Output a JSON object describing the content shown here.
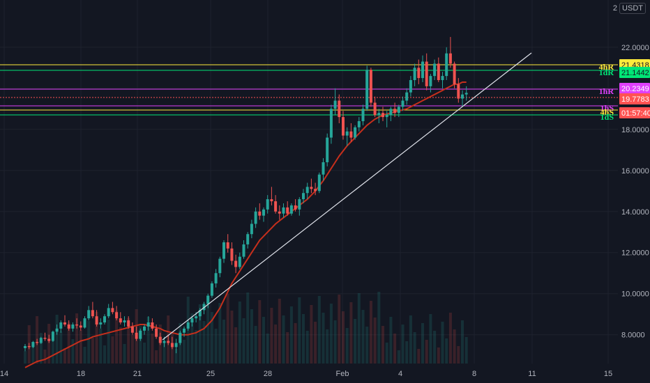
{
  "currency": {
    "prefix": "2",
    "unit": "USDT"
  },
  "colors": {
    "background": "#131722",
    "grid": "#1e222d",
    "up": "#26a69a",
    "down": "#ef5350",
    "ma": "#c62f1c",
    "trendline": "#e0e3eb",
    "yellow": "#ffeb3b",
    "green": "#00e676",
    "magenta": "#e040fb",
    "red_line": "#ff5252"
  },
  "chart_data": {
    "type": "candlestick",
    "x_ticks": [
      "14",
      "18",
      "21",
      "25",
      "28",
      "Feb",
      "4",
      "8",
      "11",
      "15"
    ],
    "y_ticks": [
      "22.0000",
      "20.0000",
      "18.0000",
      "16.0000",
      "14.0000",
      "12.0000",
      "10.0000",
      "8.0000"
    ],
    "ylim": [
      6.6,
      24.3
    ],
    "grid": true,
    "series": [
      {
        "series_type": "candles",
        "values": [
          [
            7.35,
            7.55,
            7.2,
            7.45
          ],
          [
            7.45,
            7.6,
            7.3,
            7.4
          ],
          [
            7.4,
            7.7,
            7.35,
            7.65
          ],
          [
            7.65,
            7.8,
            7.5,
            7.6
          ],
          [
            7.6,
            7.9,
            7.55,
            7.85
          ],
          [
            7.85,
            8.1,
            7.7,
            7.8
          ],
          [
            7.8,
            8.0,
            7.6,
            7.7
          ],
          [
            7.7,
            8.2,
            7.65,
            8.15
          ],
          [
            8.15,
            8.5,
            8.0,
            8.3
          ],
          [
            8.3,
            8.7,
            8.1,
            8.6
          ],
          [
            8.6,
            8.95,
            8.4,
            8.5
          ],
          [
            8.5,
            8.7,
            8.2,
            8.3
          ],
          [
            8.3,
            8.6,
            8.15,
            8.5
          ],
          [
            8.5,
            8.8,
            8.3,
            8.45
          ],
          [
            8.45,
            8.65,
            8.2,
            8.35
          ],
          [
            8.35,
            8.9,
            8.3,
            8.8
          ],
          [
            8.8,
            9.4,
            8.7,
            9.2
          ],
          [
            9.2,
            9.6,
            8.8,
            8.9
          ],
          [
            8.9,
            9.2,
            8.4,
            8.5
          ],
          [
            8.5,
            8.8,
            8.3,
            8.6
          ],
          [
            8.6,
            9.0,
            8.5,
            8.9
          ],
          [
            8.9,
            9.5,
            8.8,
            9.3
          ],
          [
            9.3,
            9.6,
            9.0,
            9.1
          ],
          [
            9.1,
            9.4,
            8.7,
            8.8
          ],
          [
            8.8,
            9.1,
            8.5,
            8.6
          ],
          [
            8.6,
            8.9,
            8.4,
            8.7
          ],
          [
            8.7,
            8.9,
            8.3,
            8.4
          ],
          [
            8.4,
            8.6,
            8.0,
            8.1
          ],
          [
            8.1,
            8.4,
            7.7,
            7.8
          ],
          [
            7.8,
            8.3,
            7.7,
            8.2
          ],
          [
            8.2,
            8.5,
            8.0,
            8.4
          ],
          [
            8.4,
            8.9,
            8.2,
            8.6
          ],
          [
            8.6,
            8.8,
            8.2,
            8.3
          ],
          [
            8.3,
            8.5,
            7.8,
            7.9
          ],
          [
            7.9,
            8.1,
            7.5,
            7.6
          ],
          [
            7.6,
            7.9,
            7.4,
            7.7
          ],
          [
            7.7,
            8.0,
            7.5,
            7.6
          ],
          [
            7.6,
            7.9,
            7.3,
            7.4
          ],
          [
            7.4,
            7.8,
            7.1,
            7.6
          ],
          [
            7.6,
            8.2,
            7.5,
            8.1
          ],
          [
            8.1,
            8.4,
            7.9,
            8.3
          ],
          [
            8.3,
            8.7,
            8.2,
            8.6
          ],
          [
            8.6,
            8.9,
            8.4,
            8.8
          ],
          [
            8.8,
            9.1,
            8.6,
            8.9
          ],
          [
            8.9,
            9.3,
            8.7,
            9.2
          ],
          [
            9.2,
            9.6,
            9.0,
            9.5
          ],
          [
            9.5,
            10.0,
            9.3,
            9.9
          ],
          [
            9.9,
            10.6,
            9.8,
            10.5
          ],
          [
            10.5,
            11.2,
            10.3,
            11.0
          ],
          [
            11.0,
            11.8,
            10.8,
            11.7
          ],
          [
            11.7,
            12.6,
            11.5,
            12.5
          ],
          [
            12.5,
            12.9,
            12.0,
            12.2
          ],
          [
            12.2,
            12.5,
            11.4,
            11.6
          ],
          [
            11.6,
            11.9,
            11.0,
            11.3
          ],
          [
            11.3,
            12.0,
            11.2,
            11.8
          ],
          [
            11.8,
            12.6,
            11.7,
            12.4
          ],
          [
            12.4,
            13.0,
            12.2,
            12.9
          ],
          [
            12.9,
            13.6,
            12.7,
            13.4
          ],
          [
            13.4,
            14.2,
            13.2,
            14.0
          ],
          [
            14.0,
            14.4,
            13.6,
            13.8
          ],
          [
            13.8,
            14.2,
            13.5,
            14.1
          ],
          [
            14.1,
            14.8,
            13.9,
            14.6
          ],
          [
            14.6,
            15.2,
            14.3,
            14.5
          ],
          [
            14.5,
            14.8,
            13.9,
            14.0
          ],
          [
            14.0,
            14.3,
            13.6,
            13.9
          ],
          [
            13.9,
            14.4,
            13.7,
            14.2
          ],
          [
            14.2,
            14.5,
            13.8,
            13.9
          ],
          [
            13.9,
            14.4,
            13.8,
            14.3
          ],
          [
            14.3,
            14.6,
            14.0,
            14.1
          ],
          [
            14.1,
            14.7,
            13.8,
            14.6
          ],
          [
            14.6,
            15.1,
            14.4,
            14.9
          ],
          [
            14.9,
            15.4,
            14.6,
            15.2
          ],
          [
            15.2,
            15.6,
            14.9,
            15.1
          ],
          [
            15.1,
            15.4,
            14.8,
            15.0
          ],
          [
            15.0,
            15.9,
            14.9,
            15.8
          ],
          [
            15.8,
            16.6,
            15.5,
            16.4
          ],
          [
            16.4,
            17.8,
            16.2,
            17.6
          ],
          [
            17.6,
            19.2,
            17.3,
            19.0
          ],
          [
            19.0,
            20.0,
            18.7,
            19.4
          ],
          [
            19.4,
            19.7,
            18.3,
            18.6
          ],
          [
            18.6,
            18.9,
            17.5,
            17.7
          ],
          [
            17.7,
            18.1,
            17.2,
            17.9
          ],
          [
            17.9,
            18.3,
            17.4,
            17.6
          ],
          [
            17.6,
            18.2,
            17.5,
            18.1
          ],
          [
            18.1,
            18.6,
            17.9,
            18.4
          ],
          [
            18.4,
            19.2,
            18.2,
            19.0
          ],
          [
            19.0,
            21.1,
            18.9,
            20.9
          ],
          [
            20.9,
            21.0,
            19.1,
            19.3
          ],
          [
            19.3,
            19.6,
            18.6,
            18.7
          ],
          [
            18.7,
            19.0,
            18.3,
            18.8
          ],
          [
            18.8,
            19.1,
            18.4,
            18.6
          ],
          [
            18.6,
            18.9,
            18.1,
            18.7
          ],
          [
            18.7,
            19.1,
            18.4,
            19.0
          ],
          [
            19.0,
            19.3,
            18.6,
            18.8
          ],
          [
            18.8,
            19.2,
            18.6,
            19.1
          ],
          [
            19.1,
            19.6,
            18.9,
            19.4
          ],
          [
            19.4,
            20.0,
            19.2,
            19.8
          ],
          [
            19.8,
            20.6,
            19.6,
            20.4
          ],
          [
            20.4,
            21.2,
            20.1,
            21.0
          ],
          [
            21.0,
            21.4,
            20.2,
            20.5
          ],
          [
            20.5,
            21.6,
            20.3,
            21.3
          ],
          [
            21.3,
            21.7,
            19.9,
            20.1
          ],
          [
            20.1,
            20.7,
            19.8,
            20.6
          ],
          [
            20.6,
            21.4,
            20.4,
            21.2
          ],
          [
            21.2,
            21.5,
            20.3,
            20.4
          ],
          [
            20.4,
            20.8,
            20.0,
            20.6
          ],
          [
            20.6,
            22.0,
            20.4,
            21.7
          ],
          [
            21.7,
            22.5,
            21.0,
            21.2
          ],
          [
            21.2,
            21.3,
            20.0,
            20.2
          ],
          [
            20.2,
            20.5,
            19.3,
            19.5
          ],
          [
            19.5,
            19.9,
            19.1,
            19.7
          ],
          [
            19.7,
            20.1,
            19.4,
            19.78
          ]
        ]
      },
      {
        "series_type": "moving_average",
        "values": [
          6.4,
          6.5,
          6.6,
          6.7,
          6.75,
          6.8,
          6.9,
          7.0,
          7.1,
          7.2,
          7.3,
          7.4,
          7.5,
          7.6,
          7.7,
          7.75,
          7.8,
          7.9,
          7.95,
          8.0,
          8.05,
          8.1,
          8.15,
          8.2,
          8.25,
          8.3,
          8.35,
          8.4,
          8.45,
          8.5,
          8.5,
          8.45,
          8.4,
          8.35,
          8.3,
          8.2,
          8.15,
          8.1,
          8.05,
          8.0,
          8.0,
          8.0,
          8.05,
          8.1,
          8.2,
          8.3,
          8.5,
          8.7,
          9.0,
          9.3,
          9.7,
          10.1,
          10.5,
          10.8,
          11.1,
          11.4,
          11.7,
          12.0,
          12.3,
          12.6,
          12.8,
          13.0,
          13.2,
          13.4,
          13.55,
          13.7,
          13.85,
          14.0,
          14.15,
          14.3,
          14.45,
          14.6,
          14.8,
          15.0,
          15.25,
          15.5,
          15.8,
          16.1,
          16.4,
          16.7,
          16.95,
          17.2,
          17.4,
          17.6,
          17.8,
          18.0,
          18.2,
          18.35,
          18.5,
          18.6,
          18.7,
          18.75,
          18.8,
          18.85,
          18.9,
          18.95,
          19.0,
          19.1,
          19.2,
          19.3,
          19.4,
          19.5,
          19.6,
          19.7,
          19.8,
          19.9,
          20.0,
          20.1,
          20.2,
          20.2,
          20.3,
          20.3
        ]
      }
    ],
    "levels": [
      {
        "label": "4hR",
        "color": "#ffeb3b",
        "tag": "21.4318"
      },
      {
        "label": "1dR",
        "color": "#00e676",
        "tag": "21.1442"
      },
      {
        "label": "1hR",
        "color": "#e040fb",
        "tag": "20.2349"
      },
      {
        "label": "",
        "color": "#ff5252",
        "tag": "19.7783"
      },
      {
        "label": "1hS",
        "color": "#e040fb",
        "tag": ""
      },
      {
        "label": "4hS",
        "color": "#ffeb3b",
        "tag": ""
      },
      {
        "label": "1dS",
        "color": "#00e676",
        "tag": ""
      }
    ],
    "countdown": "01:57:40"
  }
}
